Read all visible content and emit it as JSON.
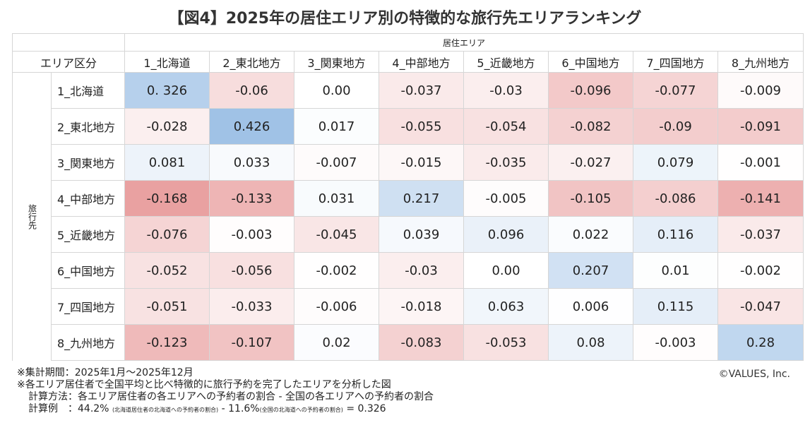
{
  "title": "【図4】2025年の居住エリア別の特徴的な旅行先エリアランキング",
  "chart_data": {
    "type": "heatmap",
    "col_group_label": "居住エリア",
    "row_group_label": "旅行先",
    "corner_label": "エリア区分",
    "columns": [
      "1_北海道",
      "2_東北地方",
      "3_関東地方",
      "4_中部地方",
      "5_近畿地方",
      "6_中国地方",
      "7_四国地方",
      "8_九州地方"
    ],
    "rows": [
      "1_北海道",
      "2_東北地方",
      "3_関東地方",
      "4_中部地方",
      "5_近畿地方",
      "6_中国地方",
      "7_四国地方",
      "8_九州地方"
    ],
    "values": [
      [
        "0. 326",
        "-0.06",
        "0.00",
        "-0.037",
        "-0.03",
        "-0.096",
        "-0.077",
        "-0.009"
      ],
      [
        "-0.028",
        "0.426",
        "0.017",
        "-0.055",
        "-0.054",
        "-0.082",
        "-0.09",
        "-0.091"
      ],
      [
        "0.081",
        "0.033",
        "-0.007",
        "-0.015",
        "-0.035",
        "-0.027",
        "0.079",
        "-0.001"
      ],
      [
        "-0.168",
        "-0.133",
        "0.031",
        "0.217",
        "-0.005",
        "-0.105",
        "-0.086",
        "-0.141"
      ],
      [
        "-0.076",
        "-0.003",
        "-0.045",
        "0.039",
        "0.096",
        "0.022",
        "0.116",
        "-0.037"
      ],
      [
        "-0.052",
        "-0.056",
        "-0.002",
        "-0.03",
        "0.00",
        "0.207",
        "0.01",
        "-0.002"
      ],
      [
        "-0.051",
        "-0.033",
        "-0.006",
        "-0.018",
        "0.063",
        "0.006",
        "0.115",
        "-0.047"
      ],
      [
        "-0.123",
        "-0.107",
        "0.02",
        "-0.083",
        "-0.053",
        "0.08",
        "-0.003",
        "0.28"
      ]
    ],
    "colors": {
      "positive": "#9fc1e6",
      "negative": "#e58f8f",
      "neutral": "#ffffff"
    }
  },
  "notes": {
    "period": "※集計期間：2025年1月～2025年12月",
    "desc": "※各エリア居住者で全国平均と比べ特徴的に旅行予約を完了したエリアを分析した図",
    "method": "計算方法：各エリア居住者の各エリアへの予約者の割合 - 全国の各エリアへの予約者の割合",
    "example_label": "計算例　：44.2%",
    "example_note1": "(北海道居住者の北海道への予約者の割合)",
    "example_mid": " - 11.6%",
    "example_note2": "(全国の北海道への予約者の割合)",
    "example_result": " = 0.326"
  },
  "copyright": "©VALUES, Inc."
}
